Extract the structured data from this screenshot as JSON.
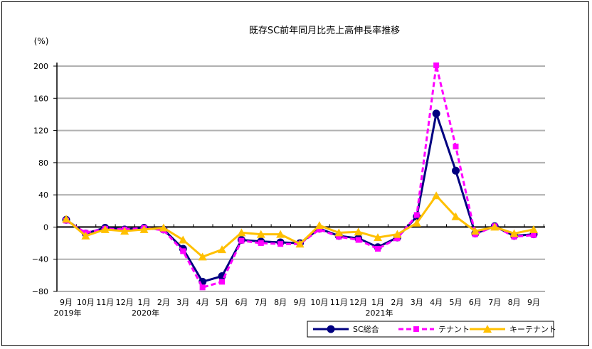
{
  "chart_data": {
    "type": "line",
    "title": "既存SC前年同月比売上高伸長率推移",
    "ylabel": "(%)",
    "ylim": [
      -80,
      200
    ],
    "yticks": [
      200,
      160,
      120,
      80,
      40,
      0,
      -40,
      -80
    ],
    "ytick_labels": [
      "200",
      "160",
      "120",
      "80",
      "40",
      "0",
      "−40",
      "−80"
    ],
    "grid": true,
    "legend_position": "bottom-right",
    "categories": [
      "9月",
      "10月",
      "11月",
      "12月",
      "1月",
      "2月",
      "3月",
      "4月",
      "5月",
      "6月",
      "7月",
      "8月",
      "9月",
      "10月",
      "11月",
      "12月",
      "1月",
      "2月",
      "3月",
      "4月",
      "5月",
      "6月",
      "7月",
      "8月",
      "9月"
    ],
    "year_labels": [
      {
        "index": 0,
        "label": "2019年"
      },
      {
        "index": 4,
        "label": "2020年"
      },
      {
        "index": 16,
        "label": "2021年"
      }
    ],
    "series": [
      {
        "name": "SC総合",
        "color": "#000080",
        "marker": "circle",
        "dash": false,
        "values": [
          9,
          -8,
          -1,
          -3,
          -1,
          -3,
          -27,
          -68,
          -61,
          -16,
          -18,
          -19,
          -20,
          -2,
          -11,
          -14,
          -25,
          -13,
          13,
          141,
          70,
          -8,
          1,
          -11,
          -9
        ]
      },
      {
        "name": "テナント",
        "color": "#FF00FF",
        "marker": "square",
        "dash": true,
        "values": [
          8,
          -7,
          -2,
          -3,
          -1,
          -4,
          -30,
          -75,
          -68,
          -17,
          -20,
          -21,
          -21,
          -3,
          -12,
          -16,
          -27,
          -14,
          15,
          201,
          100,
          -9,
          1,
          -12,
          -10
        ]
      },
      {
        "name": "キーテナント",
        "color": "#FFC000",
        "marker": "triangle",
        "dash": false,
        "values": [
          10,
          -11,
          -3,
          -5,
          -3,
          -1,
          -16,
          -37,
          -28,
          -7,
          -9,
          -9,
          -21,
          2,
          -7,
          -6,
          -13,
          -9,
          5,
          39,
          13,
          -5,
          0,
          -8,
          -3
        ]
      }
    ]
  }
}
